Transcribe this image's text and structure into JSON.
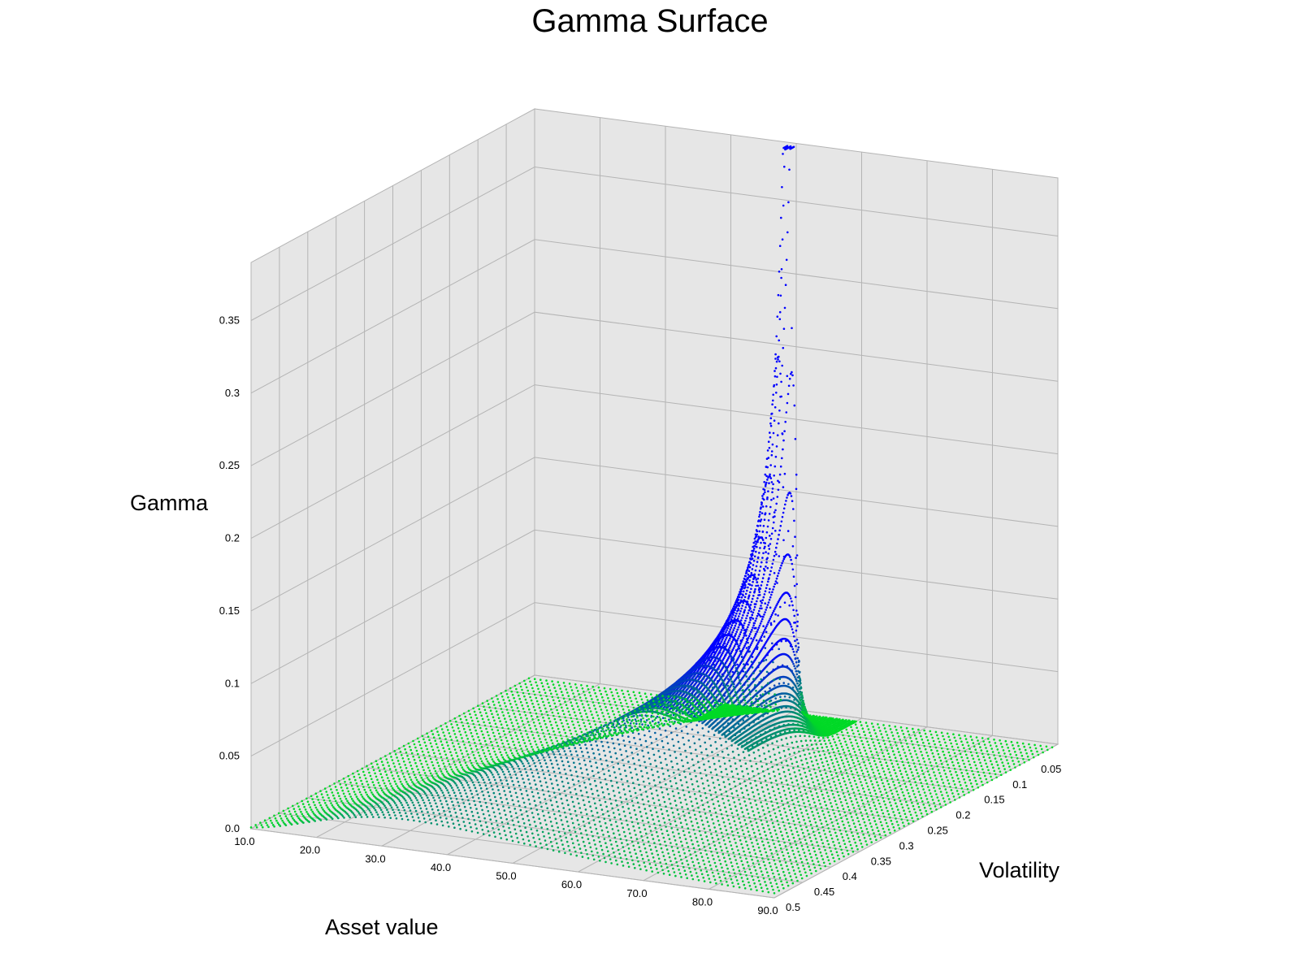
{
  "chart_data": {
    "type": "scatter3d",
    "title": "Gamma Surface",
    "xlabel": "Asset value",
    "ylabel": "Volatility",
    "zlabel": "Gamma",
    "x_ticks": [
      "10.0",
      "20.0",
      "30.0",
      "40.0",
      "50.0",
      "60.0",
      "70.0",
      "80.0",
      "90.0"
    ],
    "y_ticks": [
      "0.05",
      "0.1",
      "0.15",
      "0.2",
      "0.25",
      "0.3",
      "0.35",
      "0.4",
      "0.45",
      "0.5"
    ],
    "z_ticks": [
      "0.0",
      "0.05",
      "0.1",
      "0.15",
      "0.2",
      "0.25",
      "0.3",
      "0.35"
    ],
    "xlim": [
      10,
      90
    ],
    "ylim": [
      0,
      0.5
    ],
    "zlim": [
      0,
      0.39
    ],
    "peak": {
      "x": 50,
      "y": 0.01,
      "z": 0.385
    },
    "grid": true,
    "colors": {
      "high": "#0000ff",
      "low": "#00ff00",
      "pane": "#e6e6e6",
      "grid": "#b4b4b4"
    }
  }
}
